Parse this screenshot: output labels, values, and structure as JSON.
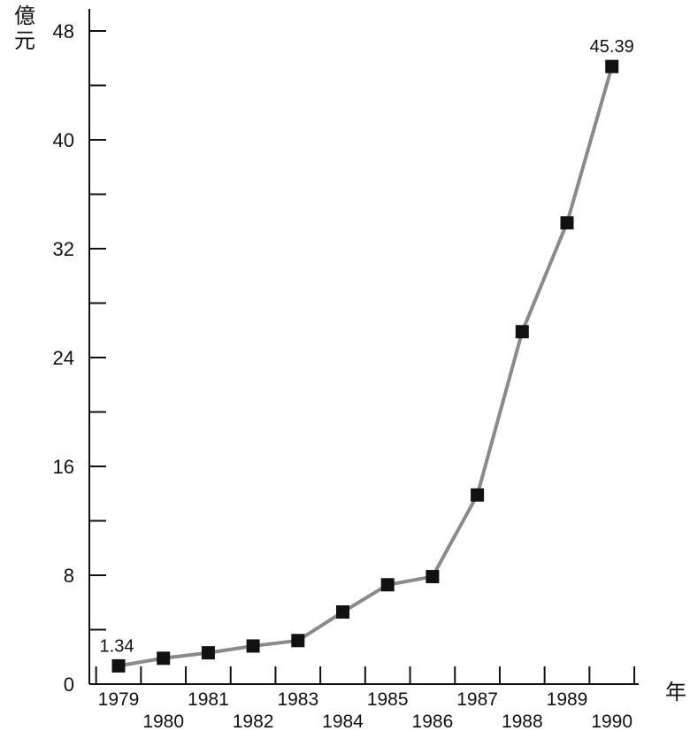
{
  "chart_data": {
    "type": "line",
    "title": "",
    "ylabel": "億元",
    "xlabel": "年",
    "ylim": [
      0,
      48
    ],
    "yticks": [
      0,
      8,
      16,
      24,
      32,
      40,
      48
    ],
    "ytick_labels": [
      "0",
      "8",
      "16",
      "24",
      "32",
      "40",
      "48"
    ],
    "grid": false,
    "legend": "none",
    "x": [
      "1979",
      "1980",
      "1981",
      "1982",
      "1983",
      "1984",
      "1985",
      "1986",
      "1987",
      "1988",
      "1989",
      "1990"
    ],
    "series": [
      {
        "values": [
          1.34,
          1.9,
          2.3,
          2.8,
          3.2,
          5.3,
          7.3,
          7.9,
          13.9,
          25.9,
          33.9,
          45.39
        ],
        "marker": "square",
        "line_color": "#8a8a8a",
        "marker_color": "#111111"
      }
    ],
    "annotations": [
      {
        "x": "1979",
        "text": "1.34"
      },
      {
        "x": "1990",
        "text": "45.39"
      }
    ]
  }
}
